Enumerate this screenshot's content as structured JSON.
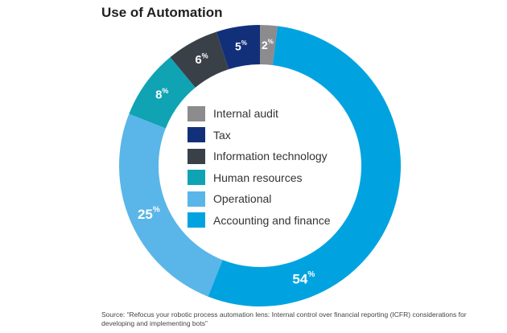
{
  "chart_data": {
    "type": "pie",
    "title": "Use of Automation",
    "percent_suffix": "%",
    "slices": [
      {
        "label": "Internal audit",
        "value": 2,
        "color": "#8c8c8f"
      },
      {
        "label": "Tax",
        "value": 5,
        "color": "#12307a"
      },
      {
        "label": "Information technology",
        "value": 6,
        "color": "#3a4048"
      },
      {
        "label": "Human resources",
        "value": 8,
        "color": "#0fa3b3"
      },
      {
        "label": "Operational",
        "value": 25,
        "color": "#5ab6e8"
      },
      {
        "label": "Accounting and finance",
        "value": 54,
        "color": "#00a3e0"
      }
    ]
  },
  "source": "Source: “Refocus your robotic process automation lens: Internal control over financial reporting (ICFR) considerations for developing and implementing bots”"
}
